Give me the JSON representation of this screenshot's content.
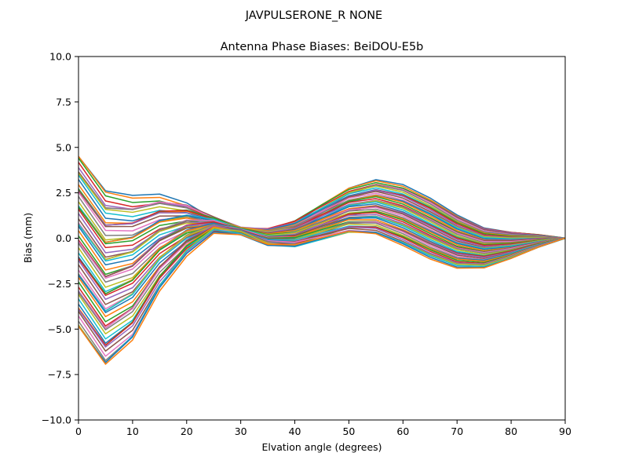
{
  "chart_data": {
    "type": "line",
    "suptitle": "JAVPULSERONE_R  NONE",
    "title": "Antenna Phase Biases: BeiDOU-E5b",
    "xlabel": "Elvation angle (degrees)",
    "ylabel": "Bias (mm)",
    "xlim": [
      0,
      90
    ],
    "ylim": [
      -10,
      10
    ],
    "xticks": [
      0,
      10,
      20,
      30,
      40,
      50,
      60,
      70,
      80,
      90
    ],
    "yticks": [
      -10.0,
      -7.5,
      -5.0,
      -2.5,
      0.0,
      2.5,
      5.0,
      7.5,
      10.0
    ],
    "xtick_labels": [
      "0",
      "10",
      "20",
      "30",
      "40",
      "50",
      "60",
      "70",
      "80",
      "90"
    ],
    "ytick_labels": [
      "−10.0",
      "−7.5",
      "−5.0",
      "−2.5",
      "0.0",
      "2.5",
      "5.0",
      "7.5",
      "10.0"
    ],
    "grid": false,
    "x": [
      0,
      5,
      10,
      15,
      20,
      25,
      30,
      35,
      40,
      45,
      50,
      55,
      60,
      65,
      70,
      75,
      80,
      85,
      90
    ],
    "series_count": 72,
    "palette": [
      "#1f77b4",
      "#ff7f0e",
      "#2ca02c",
      "#d62728",
      "#9467bd",
      "#8c564b",
      "#e377c2",
      "#7f7f7f",
      "#bcbd22",
      "#17becf"
    ],
    "envelope": {
      "description_values_mm": "per-series curves interpolate between these two extreme profiles",
      "series_a": [
        4.5,
        2.5,
        2.2,
        2.3,
        1.9,
        1.1,
        0.5,
        0.45,
        0.9,
        1.8,
        2.7,
        3.15,
        2.9,
        2.2,
        1.3,
        0.6,
        0.35,
        0.2,
        0.0
      ],
      "series_b": [
        -5.0,
        -7.1,
        -5.7,
        -2.9,
        -0.9,
        0.4,
        0.3,
        -0.3,
        -0.4,
        -0.05,
        0.3,
        0.2,
        -0.4,
        -1.1,
        -1.6,
        -1.6,
        -1.1,
        -0.5,
        0.0
      ]
    }
  }
}
